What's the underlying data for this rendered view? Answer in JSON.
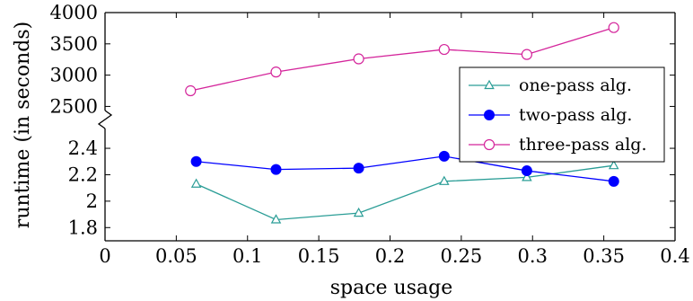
{
  "chart_data": {
    "type": "line",
    "title": "",
    "xlabel": "space usage",
    "ylabel": "runtime (in seconds)",
    "xlim": [
      0,
      0.4
    ],
    "x_ticks": [
      0,
      0.05,
      0.1,
      0.15,
      0.2,
      0.25,
      0.3,
      0.35,
      0.4
    ],
    "x_tick_labels": [
      "0",
      "0.05",
      "0.1",
      "0.15",
      "0.2",
      "0.25",
      "0.3",
      "0.35",
      "0.4"
    ],
    "y_axis_break": true,
    "y_lower_range": [
      1.7,
      2.55
    ],
    "y_lower_ticks": [
      1.8,
      2.0,
      2.2,
      2.4
    ],
    "y_lower_tick_labels": [
      "1.8",
      "2",
      "2.2",
      "2.4"
    ],
    "y_upper_range": [
      2420,
      4000
    ],
    "y_upper_ticks": [
      2500,
      3000,
      3500,
      4000
    ],
    "y_upper_tick_labels": [
      "2500",
      "3000",
      "3500",
      "4000"
    ],
    "legend_position": "right",
    "grid": false,
    "series": [
      {
        "name": "one-pass alg.",
        "color": "#2a9d96",
        "marker": "triangle-open",
        "segment": "lower",
        "x": [
          0.064,
          0.12,
          0.178,
          0.238,
          0.296,
          0.357
        ],
        "y": [
          2.13,
          1.86,
          1.91,
          2.15,
          2.18,
          2.27
        ]
      },
      {
        "name": "two-pass alg.",
        "color": "#0000ff",
        "marker": "circle-filled",
        "segment": "lower",
        "x": [
          0.064,
          0.12,
          0.178,
          0.238,
          0.296,
          0.357
        ],
        "y": [
          2.3,
          2.24,
          2.25,
          2.34,
          2.23,
          2.15
        ]
      },
      {
        "name": "three-pass alg.",
        "color": "#d4259b",
        "marker": "circle-open",
        "segment": "upper",
        "x": [
          0.06,
          0.12,
          0.178,
          0.238,
          0.296,
          0.357
        ],
        "y": [
          2750,
          3050,
          3260,
          3410,
          3330,
          3760
        ]
      }
    ]
  }
}
